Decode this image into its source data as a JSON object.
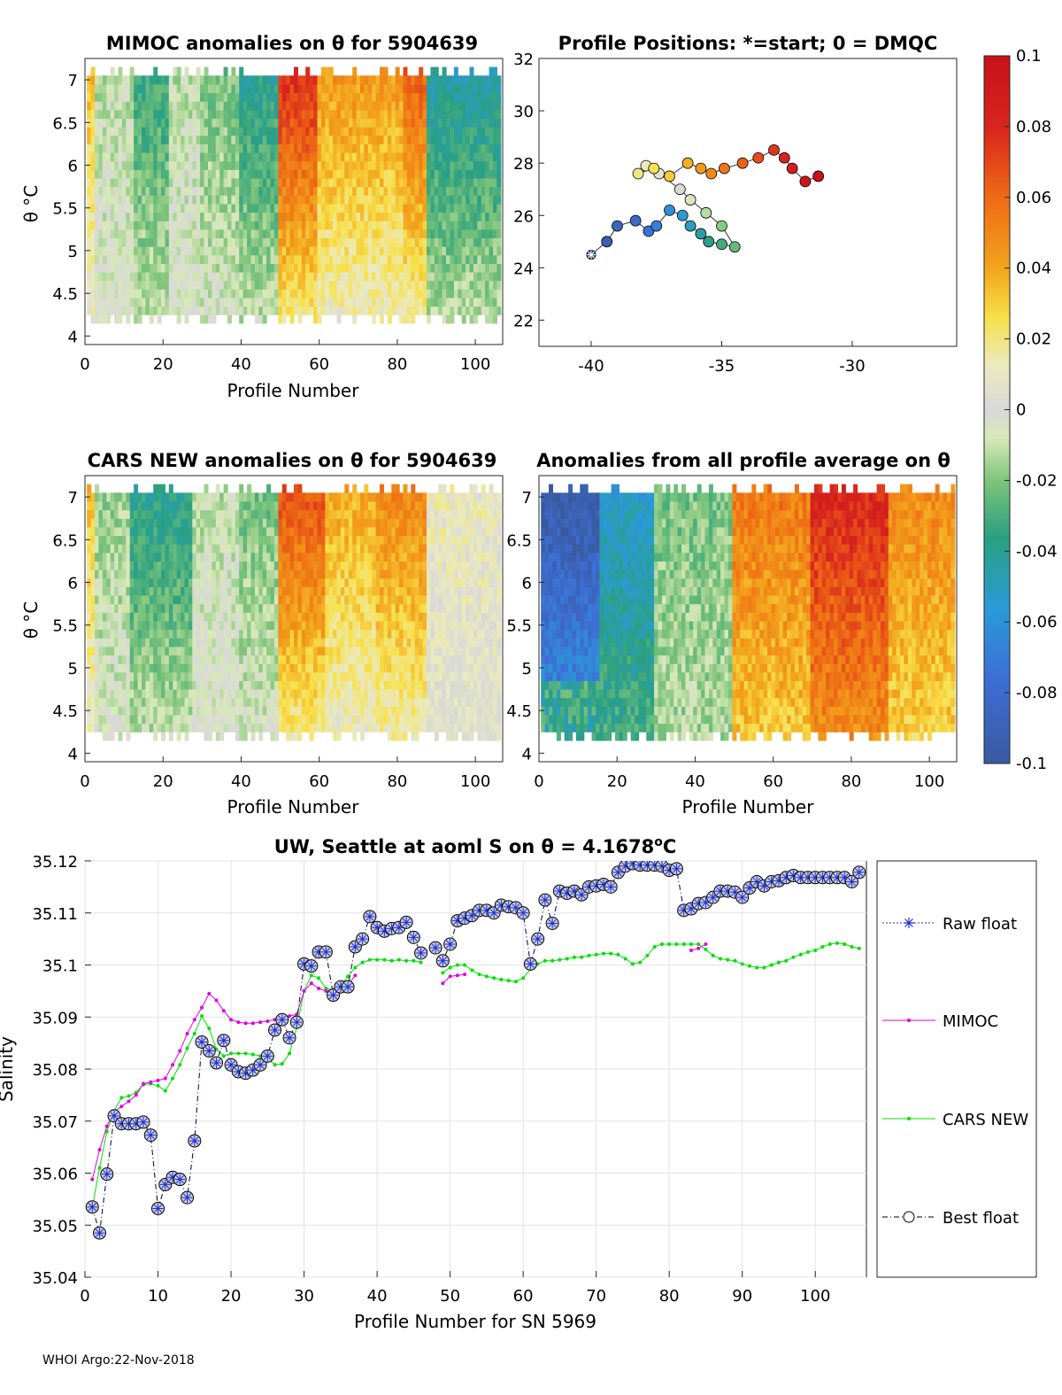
{
  "footer": "WHOI Argo:22-Nov-2018",
  "colorbar": {
    "ticks": [
      "0.1",
      "0.08",
      "0.06",
      "0.04",
      "0.02",
      "0",
      "-0.02",
      "-0.04",
      "-0.06",
      "-0.08",
      "-0.1"
    ],
    "range": [
      -0.1,
      0.1
    ]
  },
  "panels": {
    "mimoc": {
      "title": "MIMOC anomalies on θ  for 5904639",
      "ylabel": "θ °C",
      "xlabel": "Profile Number",
      "xticks": [
        "0",
        "20",
        "40",
        "60",
        "80",
        "100"
      ],
      "yticks": [
        "4",
        "4.5",
        "5",
        "5.5",
        "6",
        "6.5",
        "7"
      ]
    },
    "positions": {
      "title": "Profile Positions: *=start; 0 = DMQC",
      "xticks": [
        "-40",
        "-35",
        "-30"
      ],
      "yticks": [
        "22",
        "24",
        "26",
        "28",
        "30",
        "32"
      ]
    },
    "cars": {
      "title": "CARS NEW anomalies on θ for 5904639",
      "ylabel": "θ °C",
      "xlabel": "Profile Number",
      "xticks": [
        "0",
        "20",
        "40",
        "60",
        "80",
        "100"
      ],
      "yticks": [
        "4",
        "4.5",
        "5",
        "5.5",
        "6",
        "6.5",
        "7"
      ]
    },
    "allprof": {
      "title": "Anomalies from all profile average on θ",
      "xlabel": "Profile Number",
      "xticks": [
        "0",
        "20",
        "40",
        "60",
        "80",
        "100"
      ],
      "yticks": [
        "4",
        "4.5",
        "5",
        "5.5",
        "6",
        "6.5",
        "7"
      ]
    }
  },
  "chart_data": [
    {
      "type": "heatmap",
      "title": "MIMOC anomalies on θ  for 5904639",
      "xlabel": "Profile Number",
      "ylabel": "θ °C",
      "xlim": [
        0,
        107
      ],
      "ylim": [
        3.9,
        7.25
      ],
      "column_anomaly_by_profile_segment": [
        {
          "from": 1,
          "to": 3,
          "value": 0.03
        },
        {
          "from": 3,
          "to": 13,
          "value": -0.01
        },
        {
          "from": 13,
          "to": 22,
          "value": -0.03
        },
        {
          "from": 22,
          "to": 30,
          "value": -0.01
        },
        {
          "from": 30,
          "to": 40,
          "value": -0.02
        },
        {
          "from": 40,
          "to": 50,
          "value": -0.035
        },
        {
          "from": 50,
          "to": 60,
          "value": 0.07
        },
        {
          "from": 60,
          "to": 70,
          "value": 0.04
        },
        {
          "from": 70,
          "to": 82,
          "value": 0.04
        },
        {
          "from": 82,
          "to": 88,
          "value": 0.055
        },
        {
          "from": 88,
          "to": 107,
          "value": -0.04
        }
      ]
    },
    {
      "type": "scatter",
      "title": "Profile Positions: *=start; 0 = DMQC",
      "xlim": [
        -42,
        -26
      ],
      "ylim": [
        21,
        32
      ],
      "x": [
        -40.0,
        -39.4,
        -39.0,
        -38.3,
        -37.8,
        -37.5,
        -37.0,
        -36.5,
        -36.2,
        -35.8,
        -35.5,
        -35.0,
        -34.5,
        -35.0,
        -35.6,
        -36.2,
        -36.6,
        -37.4,
        -37.9,
        -38.2,
        -37.6,
        -37.0,
        -36.3,
        -35.8,
        -35.4,
        -34.9,
        -34.2,
        -33.6,
        -33.0,
        -32.6,
        -32.3,
        -31.8,
        -31.3
      ],
      "y": [
        24.5,
        25.0,
        25.6,
        25.8,
        25.4,
        25.6,
        26.2,
        26.0,
        25.6,
        25.3,
        25.0,
        24.9,
        24.8,
        25.6,
        26.1,
        26.6,
        27.0,
        27.6,
        27.9,
        27.6,
        27.8,
        27.5,
        28.0,
        27.8,
        27.6,
        27.8,
        28.0,
        28.2,
        28.5,
        28.2,
        27.8,
        27.3,
        27.5
      ]
    },
    {
      "type": "heatmap",
      "title": "CARS NEW anomalies on θ for 5904639",
      "xlabel": "Profile Number",
      "ylabel": "θ °C",
      "xlim": [
        0,
        107
      ],
      "ylim": [
        3.9,
        7.25
      ],
      "column_anomaly_by_profile_segment": [
        {
          "from": 1,
          "to": 3,
          "value": 0.03
        },
        {
          "from": 3,
          "to": 12,
          "value": -0.015
        },
        {
          "from": 12,
          "to": 28,
          "value": -0.035
        },
        {
          "from": 28,
          "to": 40,
          "value": -0.01
        },
        {
          "from": 40,
          "to": 50,
          "value": -0.02
        },
        {
          "from": 50,
          "to": 62,
          "value": 0.06
        },
        {
          "from": 62,
          "to": 75,
          "value": 0.035
        },
        {
          "from": 75,
          "to": 88,
          "value": 0.045
        },
        {
          "from": 88,
          "to": 107,
          "value": 0.01
        }
      ]
    },
    {
      "type": "heatmap",
      "title": "Anomalies from all profile average on θ",
      "xlabel": "Profile Number",
      "xlim": [
        0,
        107
      ],
      "ylim": [
        3.9,
        7.25
      ],
      "column_anomaly_by_profile_segment": [
        {
          "from": 1,
          "to": 16,
          "value": -0.09
        },
        {
          "from": 16,
          "to": 30,
          "value": -0.05
        },
        {
          "from": 30,
          "to": 50,
          "value": -0.02
        },
        {
          "from": 50,
          "to": 70,
          "value": 0.05
        },
        {
          "from": 70,
          "to": 90,
          "value": 0.075
        },
        {
          "from": 90,
          "to": 107,
          "value": 0.045
        }
      ]
    },
    {
      "type": "line",
      "title": "UW, Seattle at aoml S on θ = 4.1678°C",
      "xlabel": "Profile Number for SN 5969",
      "ylabel": "Salinity",
      "xlim": [
        0,
        107
      ],
      "ylim": [
        35.04,
        35.12
      ],
      "xticks": [
        "0",
        "10",
        "20",
        "30",
        "40",
        "50",
        "60",
        "70",
        "80",
        "90",
        "100"
      ],
      "yticks": [
        "35.04",
        "35.05",
        "35.06",
        "35.07",
        "35.08",
        "35.09",
        "35.1",
        "35.11",
        "35.12"
      ],
      "legend": [
        "Raw float",
        "MIMOC",
        "CARS NEW",
        "Best float"
      ],
      "legend_location": "outside-right",
      "series": [
        {
          "name": "Best float",
          "x": [
            1,
            2,
            3,
            4,
            5,
            6,
            7,
            8,
            9,
            10,
            11,
            12,
            13,
            14,
            15,
            16,
            17,
            18,
            19,
            20,
            21,
            22,
            23,
            24,
            25,
            26,
            27,
            28,
            29,
            30,
            31,
            32,
            33,
            34,
            35,
            36,
            37,
            38,
            39,
            40,
            41,
            42,
            43,
            44,
            45,
            46,
            48,
            49,
            50,
            51,
            52,
            53,
            54,
            55,
            56,
            57,
            58,
            59,
            60,
            61,
            62,
            63,
            64,
            65,
            66,
            67,
            68,
            69,
            70,
            71,
            72,
            73,
            74,
            75,
            76,
            77,
            78,
            79,
            80,
            81,
            82,
            83,
            84,
            85,
            86,
            87,
            88,
            89,
            90,
            91,
            92,
            93,
            94,
            95,
            96,
            97,
            98,
            99,
            100,
            101,
            102,
            103,
            104,
            105,
            106
          ],
          "values": [
            35.0535,
            35.0485,
            35.0598,
            35.071,
            35.0695,
            35.0695,
            35.0695,
            35.0698,
            35.0673,
            35.0532,
            35.0578,
            35.0592,
            35.0588,
            35.0553,
            35.0662,
            35.0852,
            35.0835,
            35.0812,
            35.0855,
            35.0808,
            35.0795,
            35.0792,
            35.0798,
            35.0808,
            35.0825,
            35.0875,
            35.0895,
            35.086,
            35.089,
            35.1002,
            35.0998,
            35.1025,
            35.1025,
            35.0942,
            35.0958,
            35.0958,
            35.1035,
            35.105,
            35.1093,
            35.1072,
            35.1065,
            35.107,
            35.1072,
            35.1082,
            35.1053,
            35.1023,
            35.1033,
            35.1008,
            35.104,
            35.1085,
            35.109,
            35.1095,
            35.1105,
            35.1105,
            35.11,
            35.1115,
            35.1112,
            35.111,
            35.11,
            35.1002,
            35.105,
            35.1125,
            35.108,
            35.1142,
            35.1138,
            35.1142,
            35.1135,
            35.115,
            35.1152,
            35.1155,
            35.115,
            35.1178,
            35.119,
            35.1195,
            35.1192,
            35.1192,
            35.1192,
            35.119,
            35.1182,
            35.1185,
            35.1105,
            35.1108,
            35.1118,
            35.112,
            35.113,
            35.1142,
            35.1142,
            35.114,
            35.113,
            35.1148,
            35.116,
            35.1152,
            35.116,
            35.1162,
            35.1168,
            35.1172,
            35.1168,
            35.1168,
            35.1168,
            35.1168,
            35.1168,
            35.1168,
            35.1168,
            35.116,
            35.1178
          ]
        },
        {
          "name": "MIMOC",
          "x": [
            1,
            2,
            3,
            4,
            5,
            6,
            7,
            8,
            9,
            10,
            11,
            12,
            13,
            14,
            15,
            16,
            17,
            18,
            19,
            20,
            21,
            22,
            23,
            24,
            25,
            26,
            27,
            28,
            29,
            30,
            31,
            32,
            33,
            34,
            35,
            36,
            37,
            49,
            50,
            51,
            52,
            83,
            84,
            85
          ],
          "values": [
            35.0588,
            35.0645,
            35.069,
            35.0718,
            35.0728,
            35.0738,
            35.075,
            35.0772,
            35.0775,
            35.0778,
            35.0782,
            35.0808,
            35.0835,
            35.0868,
            35.0895,
            35.0918,
            35.0945,
            35.0932,
            35.0912,
            35.0895,
            35.089,
            35.0888,
            35.0888,
            35.089,
            35.0892,
            35.0895,
            35.0898,
            35.0902,
            35.0905,
            35.095,
            35.0965,
            35.0955,
            35.095,
            35.0952,
            35.0955,
            35.096,
            35.098,
            35.0965,
            35.0978,
            35.098,
            35.0982,
            35.1028,
            35.1032,
            35.104
          ]
        },
        {
          "name": "CARS NEW",
          "series_note": "break after 46",
          "x": [
            1,
            2,
            3,
            4,
            5,
            6,
            7,
            8,
            9,
            10,
            11,
            12,
            13,
            14,
            15,
            16,
            17,
            18,
            19,
            20,
            21,
            22,
            23,
            24,
            25,
            26,
            27,
            28,
            29,
            30,
            31,
            32,
            33,
            34,
            35,
            36,
            37,
            38,
            39,
            40,
            41,
            42,
            43,
            44,
            45,
            46,
            49,
            50,
            51,
            52,
            53,
            54,
            55,
            56,
            57,
            58,
            59,
            60,
            61,
            62,
            63,
            64,
            65,
            66,
            67,
            68,
            69,
            70,
            71,
            72,
            73,
            74,
            75,
            76,
            77,
            78,
            79,
            80,
            81,
            82,
            83,
            84,
            85,
            86,
            87,
            88,
            89,
            90,
            91,
            92,
            93,
            94,
            95,
            96,
            97,
            98,
            99,
            100,
            101,
            102,
            103,
            104,
            105,
            106
          ],
          "values": [
            35.0535,
            35.061,
            35.068,
            35.072,
            35.0745,
            35.0748,
            35.0755,
            35.077,
            35.0772,
            35.0768,
            35.0758,
            35.0782,
            35.0808,
            35.084,
            35.0868,
            35.0902,
            35.0878,
            35.0838,
            35.0825,
            35.083,
            35.083,
            35.083,
            35.0828,
            35.0825,
            35.082,
            35.0808,
            35.081,
            35.083,
            35.088,
            35.095,
            35.098,
            35.0975,
            35.0955,
            35.0952,
            35.096,
            35.0978,
            35.0995,
            35.1005,
            35.101,
            35.101,
            35.101,
            35.1008,
            35.101,
            35.1008,
            35.1008,
            35.1005,
            35.0985,
            35.0995,
            35.1,
            35.1,
            35.099,
            35.0982,
            35.0978,
            35.0975,
            35.0972,
            35.097,
            35.0968,
            35.0975,
            35.0992,
            35.1002,
            35.1008,
            35.1008,
            35.101,
            35.1012,
            35.1015,
            35.1015,
            35.1018,
            35.102,
            35.1022,
            35.1022,
            35.102,
            35.1012,
            35.1002,
            35.1005,
            35.1018,
            35.1035,
            35.104,
            35.104,
            35.104,
            35.104,
            35.104,
            35.104,
            35.103,
            35.1018,
            35.1012,
            35.101,
            35.1008,
            35.1002,
            35.0998,
            35.0995,
            35.0995,
            35.1,
            35.1005,
            35.1008,
            35.1015,
            35.102,
            35.1025,
            35.1028,
            35.1035,
            35.104,
            35.1042,
            35.104,
            35.1035,
            35.1032
          ]
        }
      ]
    }
  ]
}
